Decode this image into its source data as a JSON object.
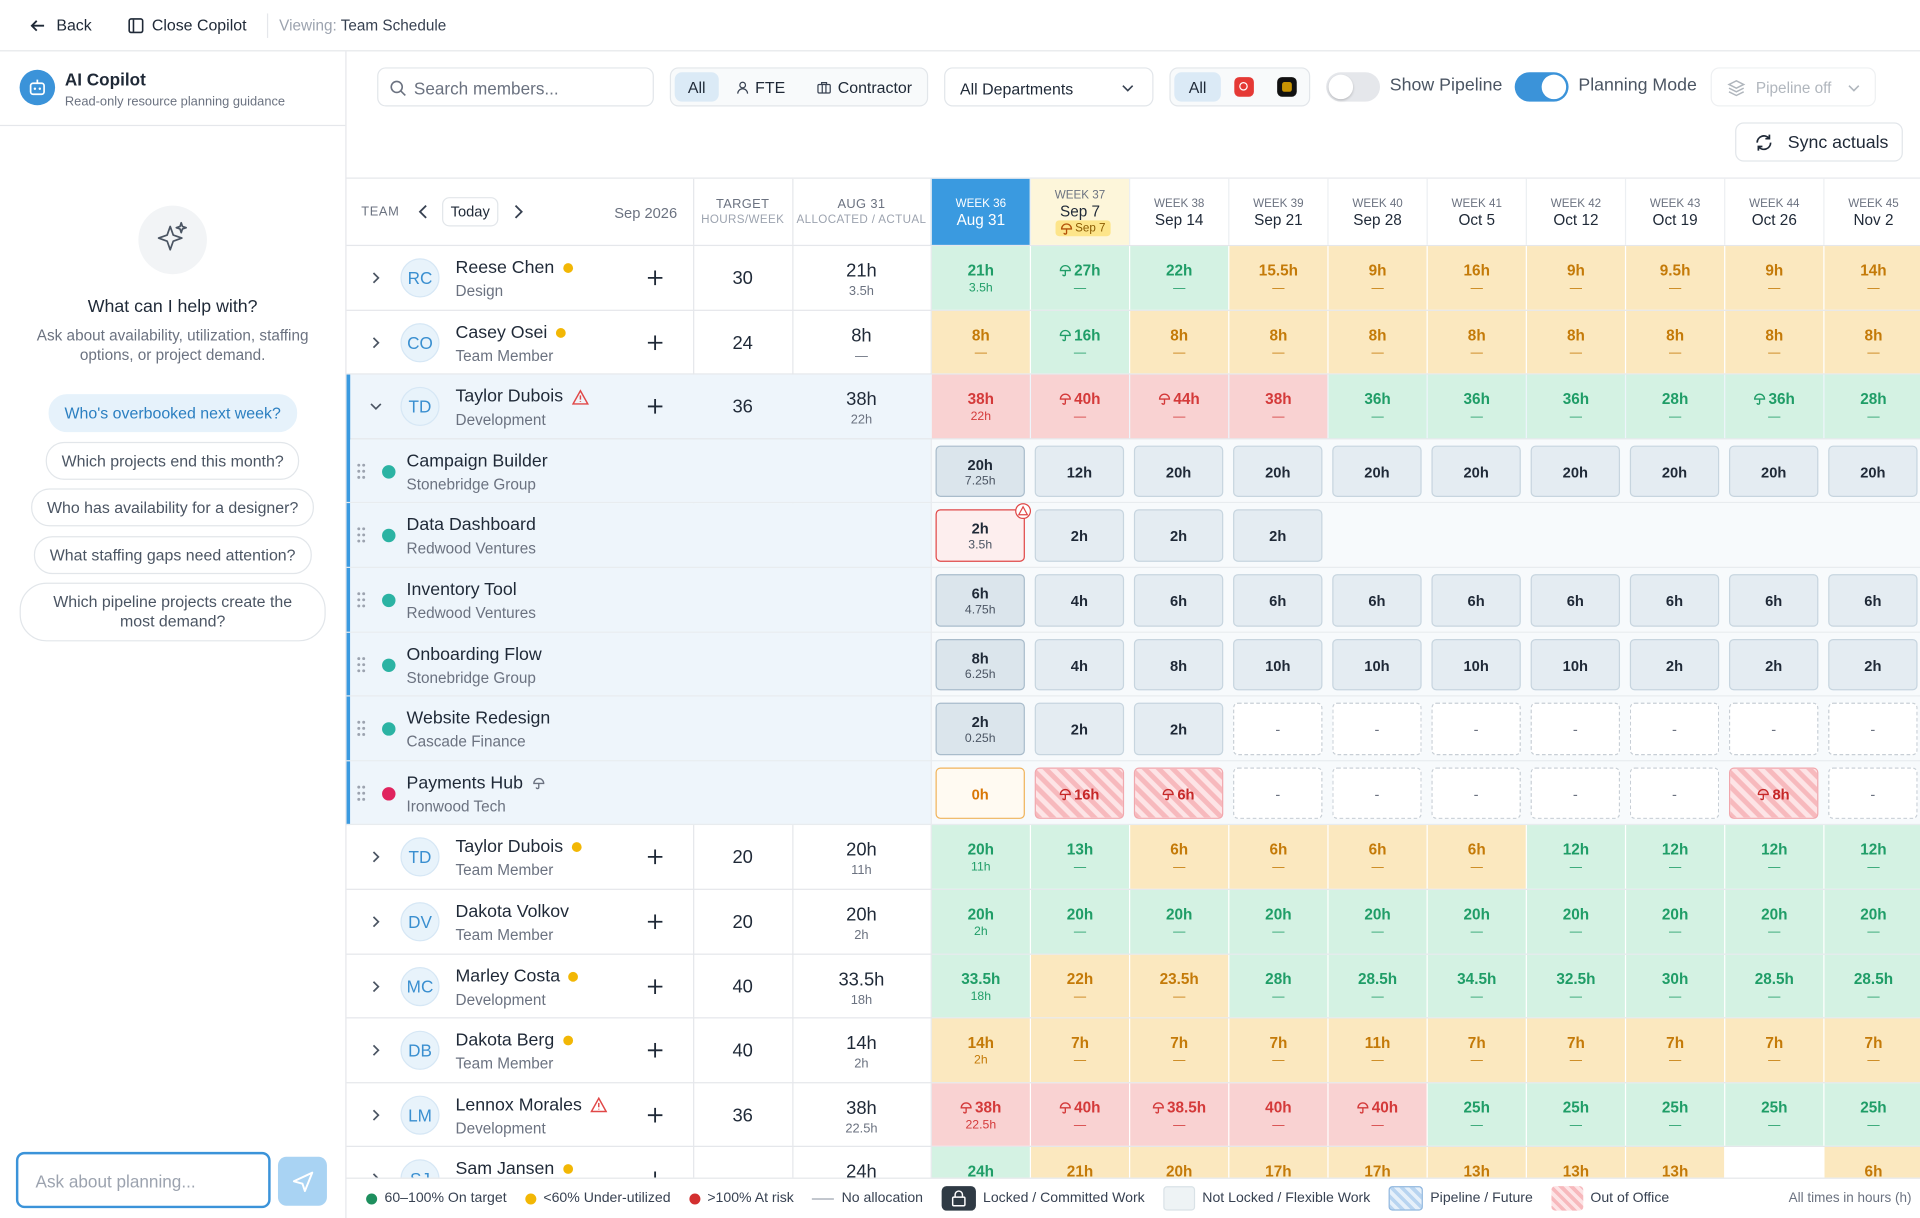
{
  "topbar": {
    "back": "Back",
    "close": "Close Copilot",
    "viewing_label": "Viewing:",
    "viewing": "Team Schedule"
  },
  "copilot": {
    "title": "AI Copilot",
    "subtitle": "Read-only resource planning guidance",
    "prompt_title": "What can I help with?",
    "prompt_text": "Ask about availability, utilization, staffing options, or project demand.",
    "suggestions": [
      "Who's overbooked next week?",
      "Which projects end this month?",
      "Who has availability for a designer?",
      "What staffing gaps need attention?",
      "Which pipeline projects create the most demand?"
    ],
    "input_placeholder": "Ask about planning..."
  },
  "toolbar": {
    "search_placeholder": "Search members...",
    "type_filters": [
      "All",
      "FTE",
      "Contractor"
    ],
    "department": "All Departments",
    "status_all": "All",
    "show_pipeline": "Show Pipeline",
    "planning_mode": "Planning Mode",
    "pipeline_select": "Pipeline off",
    "sync": "Sync actuals"
  },
  "grid": {
    "team_label": "TEAM",
    "today": "Today",
    "month": "Sep 2026",
    "target_header": [
      "TARGET",
      "HOURS/WEEK"
    ],
    "current_header": [
      "AUG 31",
      "ALLOCATED / ACTUAL"
    ],
    "weeks": [
      {
        "label": "WEEK 36",
        "date": "Aug 31",
        "current": true
      },
      {
        "label": "WEEK 37",
        "date": "Sep 7",
        "badge": "Sep 7"
      },
      {
        "label": "WEEK 38",
        "date": "Sep 14"
      },
      {
        "label": "WEEK 39",
        "date": "Sep 21"
      },
      {
        "label": "WEEK 40",
        "date": "Sep 28"
      },
      {
        "label": "WEEK 41",
        "date": "Oct 5"
      },
      {
        "label": "WEEK 42",
        "date": "Oct 12"
      },
      {
        "label": "WEEK 43",
        "date": "Oct 19"
      },
      {
        "label": "WEEK 44",
        "date": "Oct 26"
      },
      {
        "label": "WEEK 45",
        "date": "Nov 2"
      }
    ],
    "members": [
      {
        "initials": "RC",
        "name": "Reese Chen",
        "role": "Design",
        "status": "under",
        "target": "30",
        "allocated": "21h",
        "actual": "3.5h",
        "cells": [
          {
            "h": "21h",
            "sub": "3.5h",
            "level": "ok"
          },
          {
            "h": "27h",
            "sub": "—",
            "level": "ok",
            "ooo": true
          },
          {
            "h": "22h",
            "sub": "—",
            "level": "ok"
          },
          {
            "h": "15.5h",
            "sub": "—",
            "level": "under"
          },
          {
            "h": "9h",
            "sub": "—",
            "level": "under"
          },
          {
            "h": "16h",
            "sub": "—",
            "level": "under"
          },
          {
            "h": "9h",
            "sub": "—",
            "level": "under"
          },
          {
            "h": "9.5h",
            "sub": "—",
            "level": "under"
          },
          {
            "h": "9h",
            "sub": "—",
            "level": "under"
          },
          {
            "h": "14h",
            "sub": "—",
            "level": "under"
          }
        ]
      },
      {
        "initials": "CO",
        "name": "Casey Osei",
        "role": "Team Member",
        "status": "under",
        "target": "24",
        "allocated": "8h",
        "actual": "—",
        "cells": [
          {
            "h": "8h",
            "sub": "—",
            "level": "under"
          },
          {
            "h": "16h",
            "sub": "—",
            "level": "ok",
            "ooo": true
          },
          {
            "h": "8h",
            "sub": "—",
            "level": "under"
          },
          {
            "h": "8h",
            "sub": "—",
            "level": "under"
          },
          {
            "h": "8h",
            "sub": "—",
            "level": "under"
          },
          {
            "h": "8h",
            "sub": "—",
            "level": "under"
          },
          {
            "h": "8h",
            "sub": "—",
            "level": "under"
          },
          {
            "h": "8h",
            "sub": "—",
            "level": "under"
          },
          {
            "h": "8h",
            "sub": "—",
            "level": "under"
          },
          {
            "h": "8h",
            "sub": "—",
            "level": "under"
          }
        ]
      },
      {
        "initials": "TD",
        "name": "Taylor Dubois",
        "role": "Development",
        "status": "warning",
        "target": "36",
        "allocated": "38h",
        "actual": "22h",
        "expanded": true,
        "cells": [
          {
            "h": "38h",
            "sub": "22h",
            "level": "over"
          },
          {
            "h": "40h",
            "sub": "—",
            "level": "over",
            "ooo": true
          },
          {
            "h": "44h",
            "sub": "—",
            "level": "over",
            "ooo": true
          },
          {
            "h": "38h",
            "sub": "—",
            "level": "over"
          },
          {
            "h": "36h",
            "sub": "—",
            "level": "ok"
          },
          {
            "h": "36h",
            "sub": "—",
            "level": "ok"
          },
          {
            "h": "36h",
            "sub": "—",
            "level": "ok"
          },
          {
            "h": "28h",
            "sub": "—",
            "level": "ok"
          },
          {
            "h": "36h",
            "sub": "—",
            "level": "ok",
            "ooo": true
          },
          {
            "h": "28h",
            "sub": "—",
            "level": "ok"
          }
        ],
        "projects": [
          {
            "name": "Campaign Builder",
            "client": "Stonebridge Group",
            "color": "#2bb3a3",
            "cells": [
              {
                "h": "20h",
                "sub": "7.25h",
                "kind": "locked"
              },
              {
                "h": "12h"
              },
              {
                "h": "20h"
              },
              {
                "h": "20h"
              },
              {
                "h": "20h"
              },
              {
                "h": "20h"
              },
              {
                "h": "20h"
              },
              {
                "h": "20h"
              },
              {
                "h": "20h"
              },
              {
                "h": "20h"
              }
            ]
          },
          {
            "name": "Data Dashboard",
            "client": "Redwood Ventures",
            "color": "#2bb3a3",
            "cells": [
              {
                "h": "2h",
                "sub": "3.5h",
                "kind": "alert"
              },
              {
                "h": "2h"
              },
              {
                "h": "2h"
              },
              {
                "h": "2h"
              },
              null,
              null,
              null,
              null,
              null,
              null
            ]
          },
          {
            "name": "Inventory Tool",
            "client": "Redwood Ventures",
            "color": "#2bb3a3",
            "cells": [
              {
                "h": "6h",
                "sub": "4.75h",
                "kind": "locked"
              },
              {
                "h": "4h"
              },
              {
                "h": "6h"
              },
              {
                "h": "6h"
              },
              {
                "h": "6h"
              },
              {
                "h": "6h"
              },
              {
                "h": "6h"
              },
              {
                "h": "6h"
              },
              {
                "h": "6h"
              },
              {
                "h": "6h"
              }
            ]
          },
          {
            "name": "Onboarding Flow",
            "client": "Stonebridge Group",
            "color": "#2bb3a3",
            "cells": [
              {
                "h": "8h",
                "sub": "6.25h",
                "kind": "locked"
              },
              {
                "h": "4h"
              },
              {
                "h": "8h"
              },
              {
                "h": "10h"
              },
              {
                "h": "10h"
              },
              {
                "h": "10h"
              },
              {
                "h": "10h"
              },
              {
                "h": "2h"
              },
              {
                "h": "2h"
              },
              {
                "h": "2h"
              }
            ]
          },
          {
            "name": "Website Redesign",
            "client": "Cascade Finance",
            "color": "#2bb3a3",
            "cells": [
              {
                "h": "2h",
                "sub": "0.25h",
                "kind": "locked"
              },
              {
                "h": "2h"
              },
              {
                "h": "2h"
              },
              {
                "h": "-",
                "kind": "empty"
              },
              {
                "h": "-",
                "kind": "empty"
              },
              {
                "h": "-",
                "kind": "empty"
              },
              {
                "h": "-",
                "kind": "empty"
              },
              {
                "h": "-",
                "kind": "empty"
              },
              {
                "h": "-",
                "kind": "empty"
              },
              {
                "h": "-",
                "kind": "empty"
              }
            ]
          },
          {
            "name": "Payments Hub",
            "client": "Ironwood Tech",
            "color": "#e0245e",
            "ooo": true,
            "cells": [
              {
                "h": "0h",
                "kind": "zero"
              },
              {
                "h": "16h",
                "kind": "ooo"
              },
              {
                "h": "6h",
                "kind": "ooo"
              },
              {
                "h": "-",
                "kind": "empty"
              },
              {
                "h": "-",
                "kind": "empty"
              },
              {
                "h": "-",
                "kind": "empty"
              },
              {
                "h": "-",
                "kind": "empty"
              },
              {
                "h": "-",
                "kind": "empty"
              },
              {
                "h": "8h",
                "kind": "ooo"
              },
              {
                "h": "-",
                "kind": "empty"
              }
            ]
          }
        ]
      },
      {
        "initials": "TD",
        "name": "Taylor Dubois",
        "role": "Team Member",
        "status": "under",
        "target": "20",
        "allocated": "20h",
        "actual": "11h",
        "cells": [
          {
            "h": "20h",
            "sub": "11h",
            "level": "ok"
          },
          {
            "h": "13h",
            "sub": "—",
            "level": "ok"
          },
          {
            "h": "6h",
            "sub": "—",
            "level": "under"
          },
          {
            "h": "6h",
            "sub": "—",
            "level": "under"
          },
          {
            "h": "6h",
            "sub": "—",
            "level": "under"
          },
          {
            "h": "6h",
            "sub": "—",
            "level": "under"
          },
          {
            "h": "12h",
            "sub": "—",
            "level": "ok"
          },
          {
            "h": "12h",
            "sub": "—",
            "level": "ok"
          },
          {
            "h": "12h",
            "sub": "—",
            "level": "ok"
          },
          {
            "h": "12h",
            "sub": "—",
            "level": "ok"
          }
        ]
      },
      {
        "initials": "DV",
        "name": "Dakota Volkov",
        "role": "Team Member",
        "target": "20",
        "allocated": "20h",
        "actual": "2h",
        "cells": [
          {
            "h": "20h",
            "sub": "2h",
            "level": "ok"
          },
          {
            "h": "20h",
            "sub": "—",
            "level": "ok"
          },
          {
            "h": "20h",
            "sub": "—",
            "level": "ok"
          },
          {
            "h": "20h",
            "sub": "—",
            "level": "ok"
          },
          {
            "h": "20h",
            "sub": "—",
            "level": "ok"
          },
          {
            "h": "20h",
            "sub": "—",
            "level": "ok"
          },
          {
            "h": "20h",
            "sub": "—",
            "level": "ok"
          },
          {
            "h": "20h",
            "sub": "—",
            "level": "ok"
          },
          {
            "h": "20h",
            "sub": "—",
            "level": "ok"
          },
          {
            "h": "20h",
            "sub": "—",
            "level": "ok"
          }
        ]
      },
      {
        "initials": "MC",
        "name": "Marley Costa",
        "role": "Development",
        "status": "under",
        "target": "40",
        "allocated": "33.5h",
        "actual": "18h",
        "cells": [
          {
            "h": "33.5h",
            "sub": "18h",
            "level": "ok"
          },
          {
            "h": "22h",
            "sub": "—",
            "level": "under"
          },
          {
            "h": "23.5h",
            "sub": "—",
            "level": "under"
          },
          {
            "h": "28h",
            "sub": "—",
            "level": "ok"
          },
          {
            "h": "28.5h",
            "sub": "—",
            "level": "ok"
          },
          {
            "h": "34.5h",
            "sub": "—",
            "level": "ok"
          },
          {
            "h": "32.5h",
            "sub": "—",
            "level": "ok"
          },
          {
            "h": "30h",
            "sub": "—",
            "level": "ok"
          },
          {
            "h": "28.5h",
            "sub": "—",
            "level": "ok"
          },
          {
            "h": "28.5h",
            "sub": "—",
            "level": "ok"
          }
        ]
      },
      {
        "initials": "DB",
        "name": "Dakota Berg",
        "role": "Team Member",
        "status": "under",
        "target": "40",
        "allocated": "14h",
        "actual": "2h",
        "cells": [
          {
            "h": "14h",
            "sub": "2h",
            "level": "under"
          },
          {
            "h": "7h",
            "sub": "—",
            "level": "under"
          },
          {
            "h": "7h",
            "sub": "—",
            "level": "under"
          },
          {
            "h": "7h",
            "sub": "—",
            "level": "under"
          },
          {
            "h": "11h",
            "sub": "—",
            "level": "under"
          },
          {
            "h": "7h",
            "sub": "—",
            "level": "under"
          },
          {
            "h": "7h",
            "sub": "—",
            "level": "under"
          },
          {
            "h": "7h",
            "sub": "—",
            "level": "under"
          },
          {
            "h": "7h",
            "sub": "—",
            "level": "under"
          },
          {
            "h": "7h",
            "sub": "—",
            "level": "under"
          }
        ]
      },
      {
        "initials": "LM",
        "name": "Lennox Morales",
        "role": "Development",
        "status": "warning",
        "target": "36",
        "allocated": "38h",
        "actual": "22.5h",
        "cells": [
          {
            "h": "38h",
            "sub": "22.5h",
            "level": "over",
            "ooo": true
          },
          {
            "h": "40h",
            "sub": "—",
            "level": "over",
            "ooo": true
          },
          {
            "h": "38.5h",
            "sub": "—",
            "level": "over",
            "ooo": true
          },
          {
            "h": "40h",
            "sub": "—",
            "level": "over"
          },
          {
            "h": "40h",
            "sub": "—",
            "level": "over",
            "ooo": true
          },
          {
            "h": "25h",
            "sub": "—",
            "level": "ok"
          },
          {
            "h": "25h",
            "sub": "—",
            "level": "ok"
          },
          {
            "h": "25h",
            "sub": "—",
            "level": "ok"
          },
          {
            "h": "25h",
            "sub": "—",
            "level": "ok"
          },
          {
            "h": "25h",
            "sub": "—",
            "level": "ok"
          }
        ]
      },
      {
        "initials": "SJ",
        "name": "Sam Jansen",
        "status": "under",
        "allocated": "24h",
        "cells": [
          {
            "h": "24h",
            "level": "ok"
          },
          {
            "h": "21h",
            "level": "under"
          },
          {
            "h": "20h",
            "level": "under"
          },
          {
            "h": "17h",
            "level": "under"
          },
          {
            "h": "17h",
            "level": "under"
          },
          {
            "h": "13h",
            "level": "under"
          },
          {
            "h": "13h",
            "level": "under"
          },
          {
            "h": "13h",
            "level": "under"
          },
          null,
          {
            "h": "6h",
            "level": "under"
          }
        ]
      }
    ]
  },
  "legend": {
    "items": [
      {
        "label": "60–100% On target",
        "kind": "dot-green"
      },
      {
        "label": "<60% Under-utilized",
        "kind": "dot-yellow"
      },
      {
        "label": ">100% At risk",
        "kind": "dot-red"
      },
      {
        "label": "No allocation",
        "kind": "dash"
      },
      {
        "label": "Locked / Committed Work",
        "kind": "lock"
      },
      {
        "label": "Not Locked / Flexible Work",
        "kind": "flex"
      },
      {
        "label": "Pipeline / Future",
        "kind": "pipeline"
      },
      {
        "label": "Out of Office",
        "kind": "ooo"
      }
    ],
    "note": "All times in hours (h)"
  }
}
